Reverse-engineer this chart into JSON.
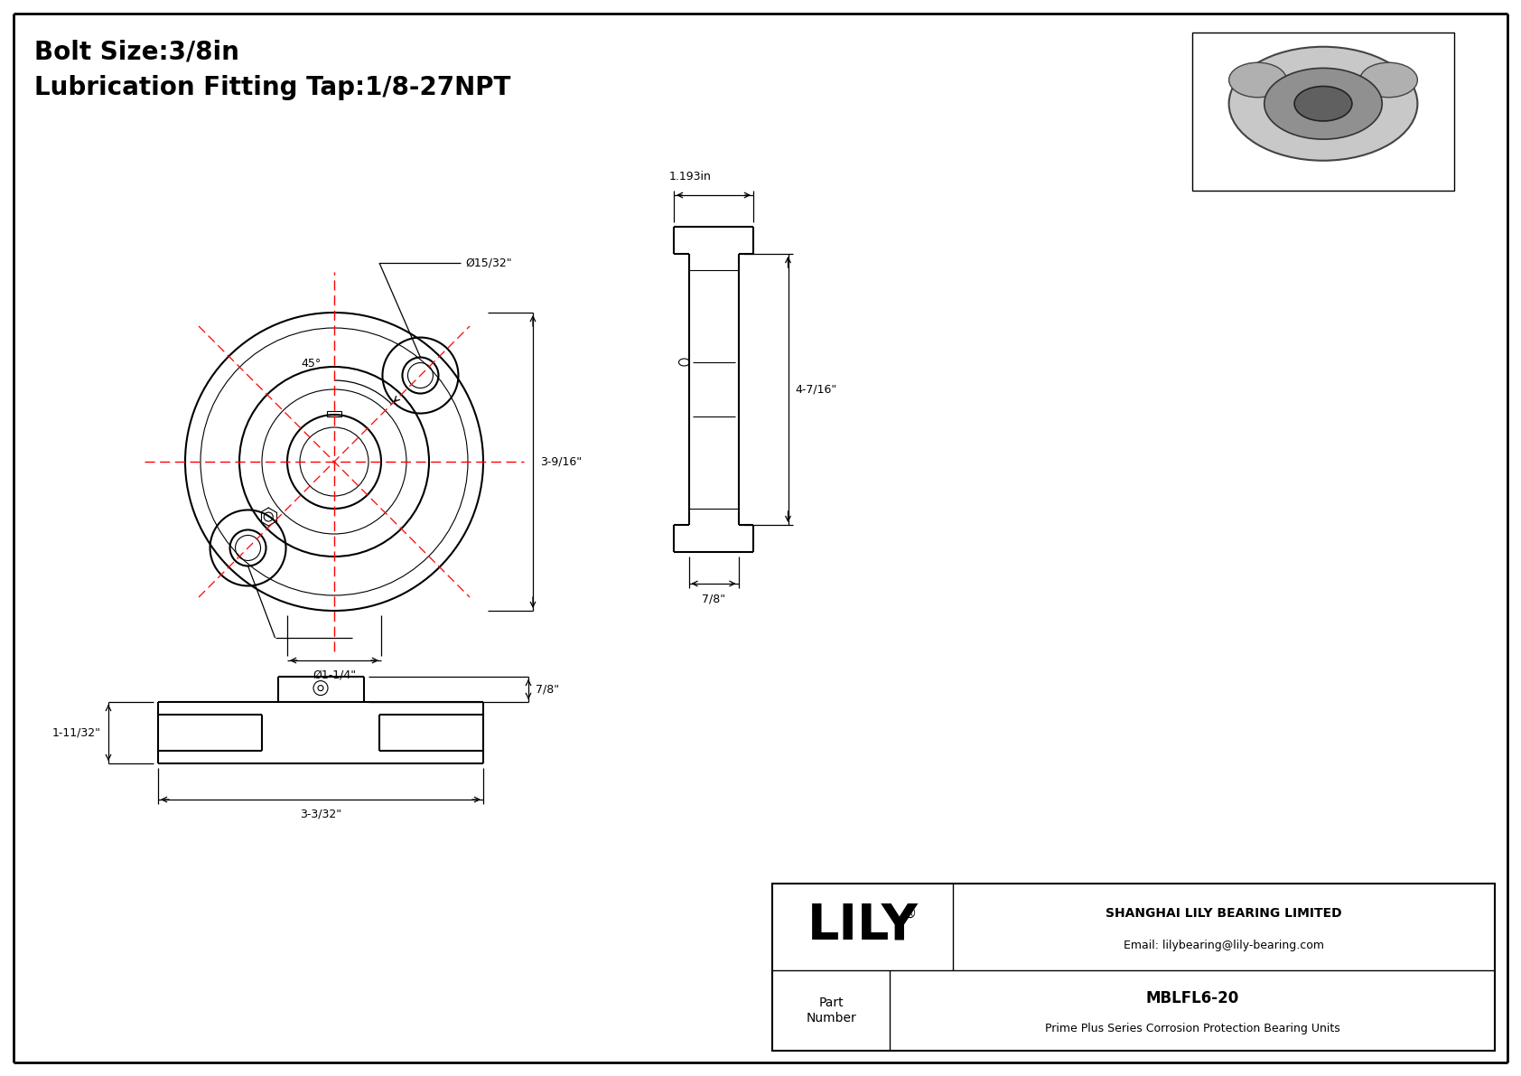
{
  "bg_color": "#ffffff",
  "line_color": "#000000",
  "red_color": "#ff0000",
  "title_line1": "Bolt Size:3/8in",
  "title_line2": "Lubrication Fitting Tap:1/8-27NPT",
  "company_name": "SHANGHAI LILY BEARING LIMITED",
  "company_email": "Email: lilybearing@lily-bearing.com",
  "part_number": "MBLFL6-20",
  "part_desc": "Prime Plus Series Corrosion Protection Bearing Units",
  "part_label": "Part\nNumber",
  "lily_text": "LILY",
  "dim_45": "45°",
  "dim_bolt_hole": "Ø15/32\"",
  "dim_width": "3-9/16\"",
  "dim_bore": "Ø1-1/4\"",
  "dim_side_width": "1.193in",
  "dim_side_height": "4-7/16\"",
  "dim_side_bottom": "7/8\"",
  "dim_bottom_height": "1-11/32\"",
  "dim_bottom_width": "3-3/32\"",
  "dim_bottom_right": "7/8\""
}
